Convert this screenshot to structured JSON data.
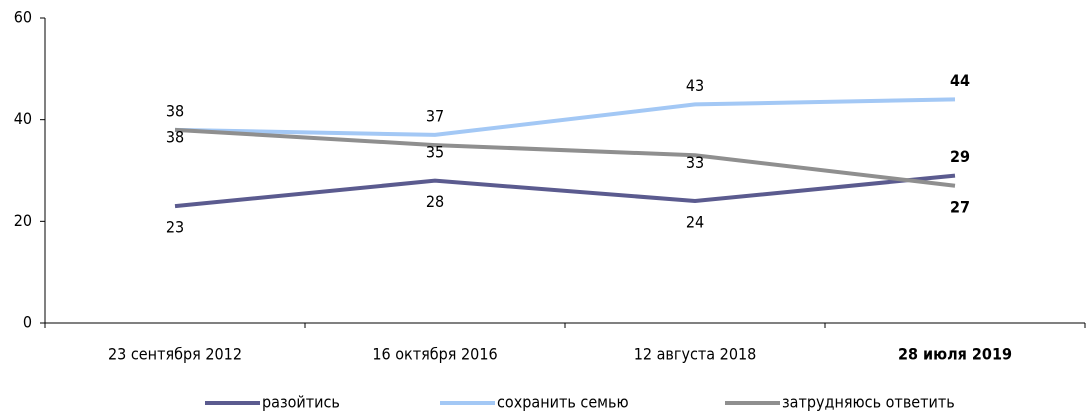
{
  "chart_data": {
    "type": "line",
    "categories": [
      "23 сентября 2012",
      "16 октября 2016",
      "12 августа 2018",
      "28 июля 2019"
    ],
    "series": [
      {
        "name": "разойтись",
        "color": "#5b5b8f",
        "values": [
          23,
          28,
          24,
          29
        ]
      },
      {
        "name": "сохранить семью",
        "color": "#a3c8f5",
        "values": [
          38,
          37,
          43,
          44
        ]
      },
      {
        "name": "затрудняюсь ответить",
        "color": "#8f8f8f",
        "values": [
          38,
          35,
          33,
          27
        ]
      }
    ],
    "ylim": [
      0,
      60
    ],
    "yticks": [
      0,
      20,
      40,
      60
    ],
    "grid": false,
    "legend": "bottom"
  }
}
